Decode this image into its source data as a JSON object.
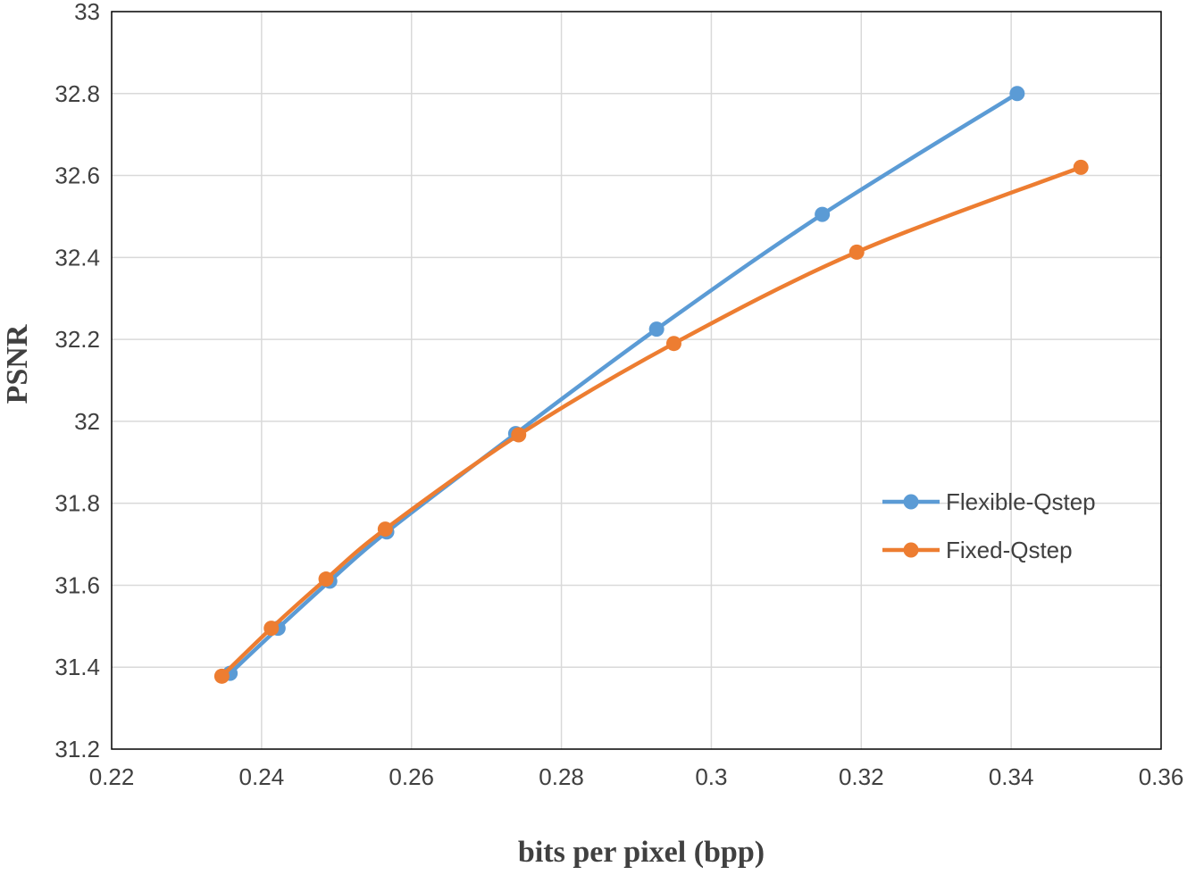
{
  "chart_data": {
    "type": "line",
    "xlabel": "bits per pixel (bpp)",
    "ylabel": "PSNR",
    "xlim": [
      0.22,
      0.36
    ],
    "ylim": [
      31.2,
      33
    ],
    "x_ticks": [
      0.22,
      0.24,
      0.26,
      0.28,
      0.3,
      0.32,
      0.34,
      0.36
    ],
    "x_tick_labels": [
      "0.22",
      "0.24",
      "0.26",
      "0.28",
      "0.3",
      "0.32",
      "0.34",
      "0.36"
    ],
    "y_ticks": [
      31.2,
      31.4,
      31.6,
      31.8,
      32,
      32.2,
      32.4,
      32.6,
      32.8,
      33
    ],
    "y_tick_labels": [
      "31.2",
      "31.4",
      "31.6",
      "31.8",
      "32",
      "32.2",
      "32.4",
      "32.6",
      "32.8",
      "33"
    ],
    "grid": true,
    "legend_position": "right",
    "series": [
      {
        "name": "Flexible-Qstep",
        "color": "#5b9bd5",
        "points": [
          {
            "x": 0.2358,
            "y": 31.385
          },
          {
            "x": 0.2422,
            "y": 31.495
          },
          {
            "x": 0.2491,
            "y": 31.61
          },
          {
            "x": 0.2567,
            "y": 31.73
          },
          {
            "x": 0.2739,
            "y": 31.97
          },
          {
            "x": 0.2927,
            "y": 32.225
          },
          {
            "x": 0.3148,
            "y": 32.505
          },
          {
            "x": 0.3408,
            "y": 32.8
          }
        ]
      },
      {
        "name": "Fixed-Qstep",
        "color": "#ed7d31",
        "points": [
          {
            "x": 0.2347,
            "y": 31.378
          },
          {
            "x": 0.2413,
            "y": 31.495
          },
          {
            "x": 0.2486,
            "y": 31.615
          },
          {
            "x": 0.2565,
            "y": 31.737
          },
          {
            "x": 0.2743,
            "y": 31.967
          },
          {
            "x": 0.295,
            "y": 32.19
          },
          {
            "x": 0.3194,
            "y": 32.413
          },
          {
            "x": 0.3493,
            "y": 32.62
          }
        ]
      }
    ]
  }
}
